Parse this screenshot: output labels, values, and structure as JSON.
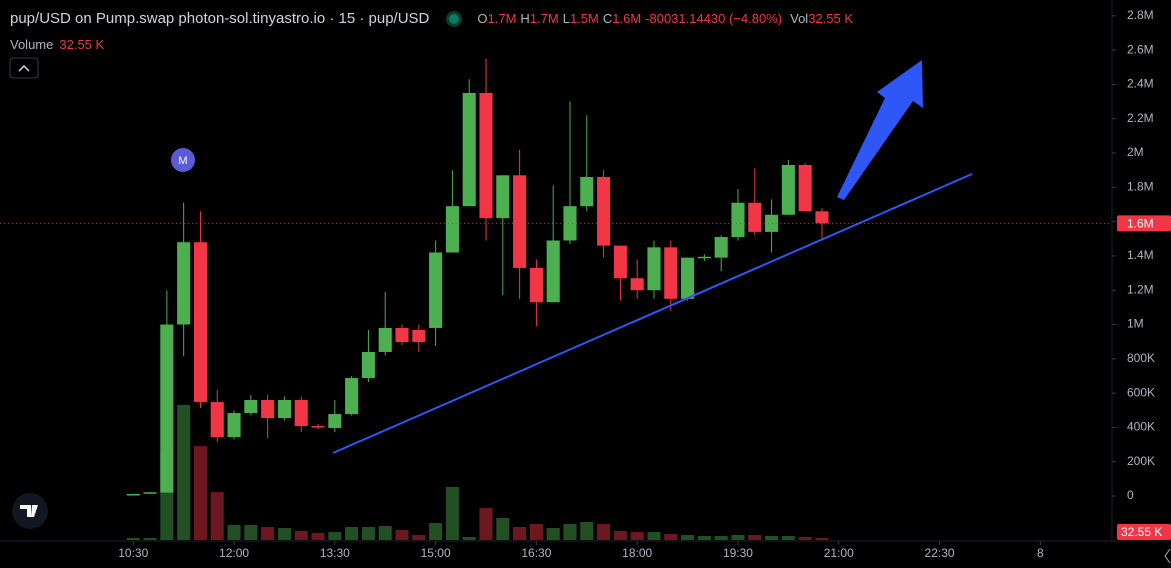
{
  "chart_data": {
    "type": "candlestick",
    "title": "pup/USD on Pump.swap photon-sol.tinyastro.io · 15 · pup/USD",
    "header": {
      "o": "O",
      "o_value": "1.7M",
      "h": "H",
      "h_value": "1.7M",
      "l": "L",
      "l_value": "1.5M",
      "c": "C",
      "c_value": "1.6M",
      "change": "-80031.14430 (−4.80%)",
      "vol": "Vol",
      "vol_value": "32.55 K"
    },
    "volume_title": "Volume",
    "volume_value": "32.55 K",
    "marker_label": "M",
    "last_price_label": "1.6M",
    "last_volume_label": "32.55 K",
    "up_color": "#4caf50",
    "down_color": "#f23645",
    "x": [
      630,
      645,
      660,
      675,
      690,
      705,
      720,
      735,
      750,
      765,
      780,
      795,
      810,
      825,
      840,
      855,
      870,
      885,
      900,
      915,
      930,
      945,
      960,
      975,
      990,
      1005,
      1020,
      1035,
      1050,
      1065,
      1080,
      1095,
      1110,
      1125,
      1140,
      1155,
      1170,
      1185,
      1200,
      1215,
      1230,
      1245
    ],
    "open": [
      8000,
      20000,
      20000,
      1000000,
      1480000,
      548000,
      344000,
      484000,
      560000,
      455000,
      560000,
      408000,
      397000,
      478000,
      688000,
      840000,
      980000,
      968000,
      980000,
      1420000,
      1690000,
      2350000,
      1620000,
      1870000,
      1330000,
      1130000,
      1490000,
      1690000,
      1860000,
      1460000,
      1270000,
      1200000,
      1450000,
      1150000,
      1390000,
      1390000,
      1510000,
      1710000,
      1540000,
      1640000,
      1930000,
      1660000
    ],
    "high": [
      14000,
      24000,
      1200000,
      1710000,
      1660000,
      618000,
      500000,
      590000,
      590000,
      580000,
      580000,
      420000,
      560000,
      700000,
      968000,
      1190000,
      1000000,
      1000000,
      1490000,
      1900000,
      2430000,
      2550000,
      1870000,
      2020000,
      1380000,
      1810000,
      2300000,
      2220000,
      1900000,
      1460000,
      1380000,
      1490000,
      1490000,
      1390000,
      1410000,
      1520000,
      1790000,
      1910000,
      1730000,
      1960000,
      1940000,
      1680000
    ],
    "low": [
      6000,
      18000,
      20000,
      816000,
      513000,
      315000,
      330000,
      470000,
      338000,
      440000,
      373000,
      390000,
      373000,
      470000,
      665000,
      820000,
      880000,
      840000,
      875000,
      1420000,
      1690000,
      1490000,
      1170000,
      1150000,
      990000,
      1130000,
      1470000,
      1660000,
      1390000,
      1140000,
      1150000,
      1150000,
      1080000,
      1140000,
      1370000,
      1310000,
      1490000,
      1520000,
      1420000,
      1640000,
      1660000,
      1490000
    ],
    "close": [
      12000,
      22000,
      1000000,
      1480000,
      548000,
      344000,
      484000,
      560000,
      455000,
      560000,
      408000,
      400000,
      478000,
      688000,
      840000,
      980000,
      898000,
      898000,
      1420000,
      1690000,
      2350000,
      1620000,
      1870000,
      1330000,
      1130000,
      1490000,
      1690000,
      1860000,
      1460000,
      1270000,
      1200000,
      1450000,
      1150000,
      1390000,
      1395000,
      1510000,
      1710000,
      1540000,
      1640000,
      1930000,
      1660000,
      1590000
    ],
    "volume": [
      33000,
      33000,
      1470000,
      2200000,
      1530000,
      780000,
      245000,
      245000,
      212000,
      196000,
      147000,
      114000,
      130000,
      212000,
      212000,
      228000,
      163000,
      82000,
      277000,
      864000,
      49000,
      522000,
      359000,
      212000,
      261000,
      196000,
      261000,
      293000,
      261000,
      147000,
      130000,
      130000,
      98000,
      82000,
      65000,
      65000,
      82000,
      82000,
      65000,
      65000,
      49000,
      32550
    ],
    "xlim": [
      511,
      1504
    ],
    "xticks": [
      {
        "value": 630,
        "label": "10:30"
      },
      {
        "value": 720,
        "label": "12:00"
      },
      {
        "value": 810,
        "label": "13:30"
      },
      {
        "value": 900,
        "label": "15:00"
      },
      {
        "value": 990,
        "label": "16:30"
      },
      {
        "value": 1080,
        "label": "18:00"
      },
      {
        "value": 1170,
        "label": "19:30"
      },
      {
        "value": 1260,
        "label": "21:00"
      },
      {
        "value": 1350,
        "label": "22:30"
      },
      {
        "value": 1440,
        "label": "8"
      }
    ],
    "ylim": [
      -262000,
      2892000
    ],
    "yticks": [
      0,
      {
        "value": 200000,
        "label": "200K"
      },
      {
        "value": 400000,
        "label": "400K"
      },
      {
        "value": 600000,
        "label": "600K"
      },
      {
        "value": 800000,
        "label": "800K"
      },
      {
        "value": 1000000,
        "label": "1M"
      },
      {
        "value": 1200000,
        "label": "1.2M"
      },
      {
        "value": 1400000,
        "label": "1.4M"
      },
      {
        "value": 1600000,
        "label": "1.6M"
      },
      {
        "value": 1800000,
        "label": "1.8M"
      },
      {
        "value": 2000000,
        "label": "2M"
      },
      {
        "value": 2200000,
        "label": "2.2M"
      },
      {
        "value": 2400000,
        "label": "2.4M"
      },
      {
        "value": 2600000,
        "label": "2.6M"
      },
      {
        "value": 2800000,
        "label": "2.8M"
      }
    ]
  }
}
